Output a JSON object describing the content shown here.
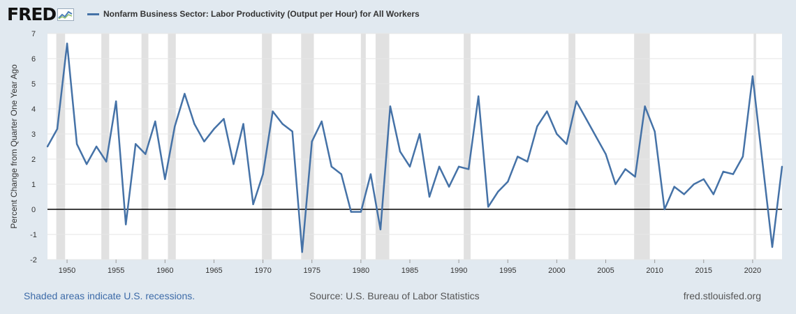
{
  "header": {
    "logo_text": "FRED",
    "series_title": "Nonfarm Business Sector: Labor Productivity (Output per Hour) for All Workers",
    "line_color": "#4572a7"
  },
  "footer": {
    "recession_note": "Shaded areas indicate U.S. recessions.",
    "source": "Source: U.S. Bureau of Labor Statistics",
    "site": "fred.stlouisfed.org"
  },
  "chart_data": {
    "type": "line",
    "title": "Nonfarm Business Sector: Labor Productivity (Output per Hour) for All Workers",
    "xlabel": "",
    "ylabel": "Percent Change from Quarter One Year Ago",
    "xlim": [
      1948,
      2023
    ],
    "ylim": [
      -2,
      7
    ],
    "yticks": [
      -2,
      -1,
      0,
      1,
      2,
      3,
      4,
      5,
      6,
      7
    ],
    "xticks": [
      1950,
      1955,
      1960,
      1965,
      1970,
      1975,
      1980,
      1985,
      1990,
      1995,
      2000,
      2005,
      2010,
      2015,
      2020
    ],
    "grid": true,
    "zero_line": true,
    "recessions": [
      [
        1948.9,
        1949.8
      ],
      [
        1953.5,
        1954.3
      ],
      [
        1957.6,
        1958.3
      ],
      [
        1960.3,
        1961.1
      ],
      [
        1969.9,
        1970.9
      ],
      [
        1973.9,
        1975.2
      ],
      [
        1980.0,
        1980.5
      ],
      [
        1981.5,
        1982.9
      ],
      [
        1990.5,
        1991.2
      ],
      [
        2001.2,
        2001.9
      ],
      [
        2007.9,
        2009.5
      ],
      [
        2020.1,
        2020.35
      ]
    ],
    "series": [
      {
        "name": "Nonfarm Business Sector: Labor Productivity (Output per Hour) for All Workers",
        "x": [
          1948,
          1949,
          1950,
          1951,
          1952,
          1953,
          1954,
          1955,
          1956,
          1957,
          1958,
          1959,
          1960,
          1961,
          1962,
          1963,
          1964,
          1965,
          1966,
          1967,
          1968,
          1969,
          1970,
          1971,
          1972,
          1973,
          1974,
          1975,
          1976,
          1977,
          1978,
          1979,
          1980,
          1981,
          1982,
          1983,
          1984,
          1985,
          1986,
          1987,
          1988,
          1989,
          1990,
          1991,
          1992,
          1993,
          1994,
          1995,
          1996,
          1997,
          1998,
          1999,
          2000,
          2001,
          2002,
          2003,
          2004,
          2005,
          2006,
          2007,
          2008,
          2009,
          2010,
          2011,
          2012,
          2013,
          2014,
          2015,
          2016,
          2017,
          2018,
          2019,
          2020,
          2021,
          2022,
          2023
        ],
        "values": [
          2.5,
          3.2,
          6.6,
          2.6,
          1.8,
          2.5,
          1.9,
          4.3,
          -0.6,
          2.6,
          2.2,
          3.5,
          1.2,
          3.3,
          4.6,
          3.4,
          2.7,
          3.2,
          3.6,
          1.8,
          3.4,
          0.2,
          1.4,
          3.9,
          3.4,
          3.1,
          -1.7,
          2.7,
          3.5,
          1.7,
          1.4,
          -0.1,
          -0.1,
          1.4,
          -0.8,
          4.1,
          2.3,
          1.7,
          3.0,
          0.5,
          1.7,
          0.9,
          1.7,
          1.6,
          4.5,
          0.1,
          0.7,
          1.1,
          2.1,
          1.9,
          3.3,
          3.9,
          3.0,
          2.6,
          4.3,
          3.6,
          2.9,
          2.2,
          1.0,
          1.6,
          1.3,
          4.1,
          3.1,
          0.0,
          0.9,
          0.6,
          1.0,
          1.2,
          0.6,
          1.5,
          1.4,
          2.1,
          5.3,
          1.9,
          -1.5,
          1.7
        ]
      }
    ]
  }
}
